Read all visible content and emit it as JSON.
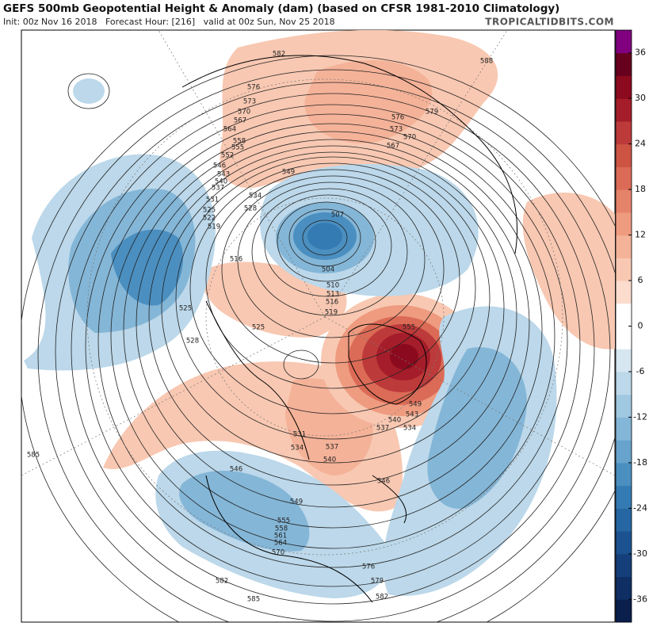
{
  "header": {
    "title": "GEFS 500mb Geopotential Height & Anomaly (dam) (based on CFSR 1981-2010 Climatology)",
    "subtitle": "Init: 00z Nov 16 2018   Forecast Hour: [216]   valid at 00z Sun, Nov 25 2018",
    "brand": "TROPICALTIDBITS.COM"
  },
  "colorbar": {
    "clim": [
      -39,
      39
    ],
    "ticks": [
      36,
      30,
      24,
      18,
      12,
      6,
      0,
      -6,
      -12,
      -18,
      -24,
      -30,
      -36
    ],
    "colors": [
      "#0a1f4c",
      "#0f2e63",
      "#153f7a",
      "#1c5290",
      "#2666a3",
      "#357bb3",
      "#4b8fc0",
      "#67a3cc",
      "#84b6d7",
      "#a1c8e1",
      "#bcd8ea",
      "#d6e7f2",
      "#ffffff",
      "#ffffff",
      "#fbdccd",
      "#f8c8b2",
      "#f4b298",
      "#ee9b80",
      "#e5836a",
      "#db6b56",
      "#cd5443",
      "#bd3a3a",
      "#a51d2a",
      "#8b0a1e",
      "#67001f",
      "#800080"
    ]
  },
  "map": {
    "contour_labels": [
      "582",
      "588",
      "576",
      "573",
      "570",
      "567",
      "564",
      "558",
      "555",
      "552",
      "546",
      "543",
      "540",
      "537",
      "534",
      "531",
      "528",
      "525",
      "522",
      "519",
      "516",
      "549",
      "507",
      "504",
      "510",
      "513",
      "516",
      "519",
      "525",
      "528",
      "525",
      "579",
      "576",
      "573",
      "570",
      "567",
      "555",
      "549",
      "543",
      "540",
      "537",
      "534",
      "546",
      "549",
      "555",
      "558",
      "561",
      "564",
      "570",
      "576",
      "579",
      "582",
      "585",
      "585",
      "582",
      "531",
      "534",
      "537",
      "540",
      "546"
    ]
  }
}
